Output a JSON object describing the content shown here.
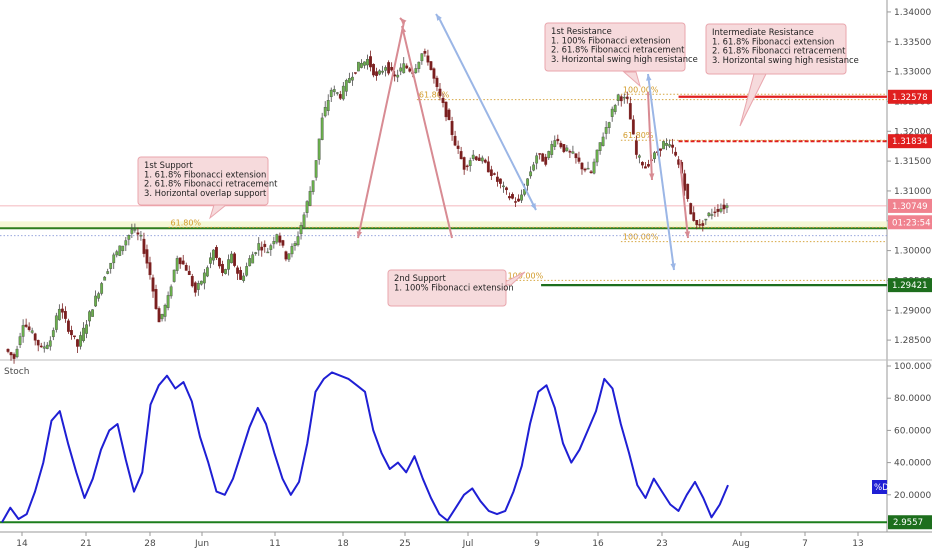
{
  "chart_data": {
    "type": "candlestick",
    "x_tick_labels": [
      "14",
      "21",
      "28",
      "Jun",
      "11",
      "18",
      "25",
      "Jul",
      "9",
      "16",
      "23",
      "Aug",
      "7",
      "13"
    ],
    "price_axis": {
      "range": [
        1.282,
        1.342
      ],
      "ticks": [
        "1.34000",
        "1.33500",
        "1.33000",
        "1.32500",
        "1.32000",
        "1.31500",
        "1.31000",
        "1.30500",
        "1.30000",
        "1.29500",
        "1.29000",
        "1.28500"
      ]
    },
    "price_tags": [
      {
        "id": "res1",
        "label": "1.32578",
        "value": 1.32578,
        "color": "#e01f1f"
      },
      {
        "id": "res2",
        "label": "1.31834",
        "value": 1.31834,
        "color": "#e01f1f"
      },
      {
        "id": "last",
        "label": "1.30749",
        "value": 1.30749,
        "color": "#f0828f"
      },
      {
        "id": "timer",
        "label": "01:23:54",
        "value": 1.30475,
        "color": "#f0828f"
      },
      {
        "id": "sup2",
        "label": "1.29421",
        "value": 1.29421,
        "color": "#1d6e1d"
      }
    ],
    "levels": [
      {
        "id": "res1",
        "value": 1.32578,
        "color": "#e01f1f",
        "style": "solid",
        "start_frac": 0.765
      },
      {
        "id": "res2",
        "value": 1.31834,
        "color": "#e01f1f",
        "style": "dashed",
        "start_frac": 0.765
      },
      {
        "id": "sup1",
        "value": 1.30375,
        "color": "#2e7d1e",
        "style": "solid",
        "start_frac": 0.0
      },
      {
        "id": "sup2",
        "value": 1.29421,
        "color": "#1d6e1d",
        "style": "solid",
        "start_frac": 0.61
      }
    ],
    "fib_levels": [
      {
        "label": "61.80%",
        "value": 1.3253,
        "from": 0.47,
        "to": 1.0
      },
      {
        "label": "100.00%",
        "value": 1.3262,
        "from": 0.7,
        "to": 1.0
      },
      {
        "label": "61.80%",
        "value": 1.3185,
        "from": 0.7,
        "to": 1.0
      },
      {
        "label": "61.80%",
        "value": 1.3039,
        "from": 0.19,
        "to": 1.0
      },
      {
        "label": "100.00%",
        "value": 1.3015,
        "from": 0.7,
        "to": 1.0
      },
      {
        "label": "100.00%",
        "value": 1.295,
        "from": 0.57,
        "to": 1.0
      }
    ],
    "price_series": [
      [
        0,
        1.2835
      ],
      [
        3,
        1.282
      ],
      [
        6,
        1.288
      ],
      [
        9,
        1.286
      ],
      [
        12,
        1.2835
      ],
      [
        15,
        1.285
      ],
      [
        18,
        1.2905
      ],
      [
        21,
        1.287
      ],
      [
        24,
        1.284
      ],
      [
        27,
        1.288
      ],
      [
        30,
        1.292
      ],
      [
        33,
        1.296
      ],
      [
        36,
        1.299
      ],
      [
        39,
        1.301
      ],
      [
        42,
        1.3035
      ],
      [
        45,
        1.302
      ],
      [
        48,
        1.296
      ],
      [
        51,
        1.288
      ],
      [
        54,
        1.292
      ],
      [
        57,
        1.299
      ],
      [
        60,
        1.297
      ],
      [
        63,
        1.293
      ],
      [
        66,
        1.296
      ],
      [
        69,
        1.3
      ],
      [
        72,
        1.296
      ],
      [
        75,
        1.299
      ],
      [
        78,
        1.295
      ],
      [
        81,
        1.2985
      ],
      [
        84,
        1.301
      ],
      [
        87,
        1.3
      ],
      [
        90,
        1.303
      ],
      [
        93,
        1.299
      ],
      [
        96,
        1.301
      ],
      [
        99,
        1.306
      ],
      [
        102,
        1.312
      ],
      [
        105,
        1.322
      ],
      [
        108,
        1.327
      ],
      [
        111,
        1.326
      ],
      [
        114,
        1.329
      ],
      [
        117,
        1.331
      ],
      [
        120,
        1.332
      ],
      [
        123,
        1.329
      ],
      [
        126,
        1.331
      ],
      [
        129,
        1.329
      ],
      [
        132,
        1.331
      ],
      [
        135,
        1.33
      ],
      [
        138,
        1.333
      ],
      [
        140,
        1.332
      ],
      [
        143,
        1.327
      ],
      [
        146,
        1.323
      ],
      [
        149,
        1.318
      ],
      [
        152,
        1.314
      ],
      [
        155,
        1.316
      ],
      [
        158,
        1.315
      ],
      [
        161,
        1.313
      ],
      [
        164,
        1.311
      ],
      [
        167,
        1.309
      ],
      [
        170,
        1.308
      ],
      [
        173,
        1.312
      ],
      [
        176,
        1.316
      ],
      [
        179,
        1.315
      ],
      [
        182,
        1.319
      ],
      [
        185,
        1.317
      ],
      [
        188,
        1.316
      ],
      [
        191,
        1.314
      ],
      [
        194,
        1.313
      ],
      [
        197,
        1.318
      ],
      [
        200,
        1.322
      ],
      [
        203,
        1.326
      ],
      [
        206,
        1.325
      ],
      [
        209,
        1.316
      ],
      [
        212,
        1.314
      ],
      [
        215,
        1.316
      ],
      [
        218,
        1.318
      ],
      [
        221,
        1.317
      ],
      [
        224,
        1.313
      ],
      [
        227,
        1.306
      ],
      [
        230,
        1.304
      ],
      [
        233,
        1.306
      ],
      [
        236,
        1.307
      ],
      [
        239,
        1.3075
      ]
    ],
    "stoch": {
      "label": "Stoch",
      "series_label": "%D",
      "y_ticks": [
        "100.0000",
        "80.0000",
        "60.0000",
        "40.0000",
        "20.0000"
      ],
      "range": [
        0,
        100
      ],
      "level_label": "2.9557",
      "level_value": 2.9557,
      "values": [
        3,
        12,
        5,
        8,
        22,
        40,
        66,
        72,
        52,
        34,
        18,
        30,
        48,
        60,
        64,
        42,
        22,
        34,
        76,
        88,
        94,
        86,
        90,
        78,
        56,
        40,
        22,
        20,
        30,
        46,
        62,
        74,
        64,
        46,
        30,
        20,
        28,
        52,
        84,
        92,
        96,
        94,
        92,
        88,
        84,
        60,
        46,
        36,
        40,
        34,
        44,
        30,
        18,
        8,
        4,
        12,
        20,
        24,
        16,
        10,
        8,
        10,
        22,
        38,
        64,
        84,
        88,
        74,
        52,
        40,
        48,
        60,
        72,
        92,
        86,
        64,
        46,
        26,
        18,
        30,
        22,
        14,
        10,
        20,
        28,
        18,
        6,
        14,
        26
      ]
    },
    "annotations": [
      {
        "id": "a1",
        "lines": [
          "1st Resistance",
          "1. 100% Fibonacci extension",
          "2. 61.8% Fibonacci retracement",
          "3. Horizontal swing high resistance"
        ]
      },
      {
        "id": "a2",
        "lines": [
          "Intermediate Resistance",
          "1. 61.8% Fibonacci extension",
          "2. 61.8% Fibonacci retracement",
          "3. Horizontal swing high resistance"
        ]
      },
      {
        "id": "a3",
        "lines": [
          "1st Support",
          "1. 61.8% Fibonacci extension",
          "2. 61.8% Fibonacci retracement",
          "3. Horizontal overlap support"
        ]
      },
      {
        "id": "a4",
        "lines": [
          "2nd Support",
          "1. 100% Fibonacci extension"
        ]
      }
    ],
    "arrows_color": {
      "pink": "#d88b93",
      "blue": "#9bb6e6",
      "candle_up": "#4a4a4a",
      "candle_down": "#7a1f1f",
      "stoch_line": "#1f1fd4"
    }
  }
}
